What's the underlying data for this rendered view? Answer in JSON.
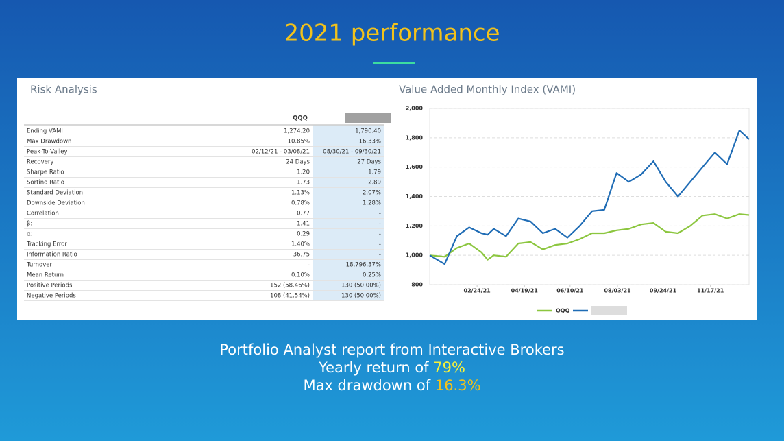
{
  "header": {
    "title": "2021 performance"
  },
  "risk_table": {
    "title": "Risk Analysis",
    "columns": [
      "QQQ"
    ],
    "rows": [
      [
        "Ending VAMI",
        "1,274.20",
        "1,790.40"
      ],
      [
        "Max Drawdown",
        "10.85%",
        "16.33%"
      ],
      [
        "Peak-To-Valley",
        "02/12/21 - 03/08/21",
        "08/30/21 - 09/30/21"
      ],
      [
        "Recovery",
        "24 Days",
        "27 Days"
      ],
      [
        "Sharpe Ratio",
        "1.20",
        "1.79"
      ],
      [
        "Sortino Ratio",
        "1.73",
        "2.89"
      ],
      [
        "Standard Deviation",
        "1.13%",
        "2.07%"
      ],
      [
        "Downside Deviation",
        "0.78%",
        "1.28%"
      ],
      [
        "Correlation",
        "0.77",
        "-"
      ],
      [
        "β:",
        "1.41",
        "-"
      ],
      [
        "α:",
        "0.29",
        "-"
      ],
      [
        "Tracking Error",
        "1.40%",
        "-"
      ],
      [
        "Information Ratio",
        "36.75",
        "-"
      ],
      [
        "Turnover",
        "-",
        "18,796.37%"
      ],
      [
        "Mean Return",
        "0.10%",
        "0.25%"
      ],
      [
        "Positive Periods",
        "152 (58.46%)",
        "130 (50.00%)"
      ],
      [
        "Negative Periods",
        "108 (41.54%)",
        "130 (50.00%)"
      ]
    ]
  },
  "chart_data": {
    "type": "line",
    "title": "Value Added Monthly Index (VAMI)",
    "x": [
      "01/01/21",
      "01/18/21",
      "02/01/21",
      "02/15/21",
      "03/01/21",
      "03/08/21",
      "03/15/21",
      "03/29/21",
      "04/12/21",
      "04/26/21",
      "05/10/21",
      "05/24/21",
      "06/07/21",
      "06/21/21",
      "07/05/21",
      "07/19/21",
      "08/02/21",
      "08/16/21",
      "08/30/21",
      "09/13/21",
      "09/27/21",
      "10/11/21",
      "10/25/21",
      "11/08/21",
      "11/22/21",
      "12/06/21",
      "12/20/21",
      "12/31/21"
    ],
    "series": [
      {
        "name": "QQQ",
        "color": "#8cc63f",
        "values": [
          1000,
          990,
          1050,
          1080,
          1020,
          970,
          1000,
          990,
          1080,
          1090,
          1040,
          1070,
          1080,
          1110,
          1150,
          1150,
          1170,
          1180,
          1210,
          1220,
          1160,
          1150,
          1200,
          1270,
          1280,
          1250,
          1280,
          1274
        ]
      },
      {
        "color": "#1f6cb5",
        "values": [
          1000,
          940,
          1130,
          1190,
          1150,
          1140,
          1180,
          1130,
          1250,
          1230,
          1150,
          1180,
          1120,
          1200,
          1300,
          1310,
          1560,
          1500,
          1550,
          1640,
          1500,
          1400,
          1500,
          1600,
          1700,
          1620,
          1850,
          1790
        ]
      }
    ],
    "xlim": [
      "01/01/21",
      "12/31/21"
    ],
    "xticks": [
      "02/24/21",
      "04/19/21",
      "06/10/21",
      "08/03/21",
      "09/24/21",
      "11/17/21"
    ],
    "ylim": [
      800,
      2000
    ],
    "yticks": [
      800,
      {
        "value": 1000,
        "label": "1,000"
      },
      {
        "value": 1200,
        "label": "1,200"
      },
      {
        "value": 1400,
        "label": "1,400"
      },
      {
        "value": 1600,
        "label": "1,600"
      },
      {
        "value": 1800,
        "label": "1,800"
      },
      {
        "value": 2000,
        "label": "2,000"
      }
    ],
    "grid": true
  },
  "footer": {
    "line1": "Portfolio Analyst report from Interactive Brokers",
    "line2": {
      "text": "Yearly return of",
      "highlight": "79%"
    },
    "line3": {
      "text": "Max drawdown of",
      "highlight": "16.3%"
    }
  }
}
